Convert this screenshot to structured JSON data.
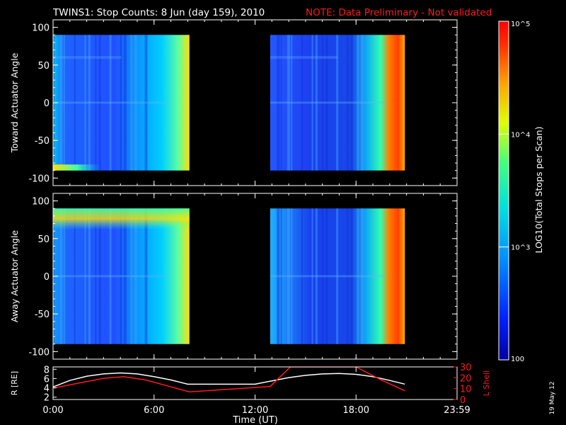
{
  "header": {
    "title": "TWINS1: Stop Counts:  8 Jun (day 159), 2010",
    "note": "NOTE: Data Preliminary - Not validated",
    "note_color": "#ff1a1a"
  },
  "side_stamp": "19 May 12",
  "colorbar": {
    "label": "LOG10(Total Stops per Scan)",
    "ticks": [
      "10^5",
      "10^4",
      "10^3",
      "100"
    ],
    "tick_values": [
      100000,
      10000,
      1000,
      100
    ],
    "range": [
      100,
      100000
    ],
    "scale": "log"
  },
  "xaxis": {
    "label": "Time (UT)",
    "ticks": [
      "0:00",
      "6:00",
      "12:00",
      "18:00",
      "23:59"
    ],
    "tick_hours": [
      0,
      6,
      12,
      18,
      24
    ]
  },
  "chart_data": [
    {
      "type": "heatmap",
      "panel": "top",
      "ylabel": "Toward Actuator Angle",
      "ylim": [
        -110,
        110
      ],
      "yticks": [
        "100",
        "50",
        "0",
        "-50",
        "-100"
      ],
      "ytick_values": [
        100,
        50,
        0,
        -50,
        -100
      ],
      "data_segments_hours": [
        [
          0.0,
          8.1
        ],
        [
          12.9,
          20.9
        ]
      ],
      "angle_range": [
        -90,
        90
      ]
    },
    {
      "type": "heatmap",
      "panel": "middle",
      "ylabel": "Away Actuator Angle",
      "ylim": [
        -110,
        110
      ],
      "yticks": [
        "100",
        "50",
        "0",
        "-50",
        "-100"
      ],
      "ytick_values": [
        100,
        50,
        0,
        -50,
        -100
      ],
      "data_segments_hours": [
        [
          0.0,
          8.1
        ],
        [
          12.9,
          20.9
        ]
      ],
      "angle_range": [
        -90,
        90
      ]
    },
    {
      "type": "line",
      "panel": "bottom",
      "ylabel_left": "R [RE]",
      "ylabel_right": "L Shell",
      "left_yticks": [
        "8",
        "6",
        "4",
        "2"
      ],
      "left_ylim": [
        1.5,
        8.5
      ],
      "right_yticks": [
        "30",
        "20",
        "10",
        "0"
      ],
      "right_ylim": [
        0,
        30
      ],
      "series": [
        {
          "name": "R [RE]",
          "color": "#ffffff",
          "axis": "left",
          "x": [
            0.0,
            1,
            2,
            3,
            4,
            5,
            6,
            7,
            8,
            9,
            10,
            11,
            12,
            13,
            14,
            15,
            16,
            17,
            18,
            19,
            20,
            20.9
          ],
          "y": [
            4.2,
            5.6,
            6.5,
            7.0,
            7.2,
            7.0,
            6.4,
            5.7,
            4.8,
            4.8,
            4.8,
            4.8,
            4.8,
            5.5,
            6.2,
            6.7,
            7.0,
            7.1,
            6.9,
            6.4,
            5.6,
            4.8
          ]
        },
        {
          "name": "L Shell",
          "color": "#ff1a1a",
          "axis": "right",
          "x": [
            0.0,
            1.5,
            3,
            4.2,
            5.5,
            6.8,
            8.1,
            12.9,
            14.1,
            18.0,
            19.5,
            20.9
          ],
          "y": [
            10.5,
            15,
            19.5,
            21,
            18,
            12.5,
            7,
            12,
            30,
            30,
            18,
            8
          ]
        }
      ]
    }
  ]
}
